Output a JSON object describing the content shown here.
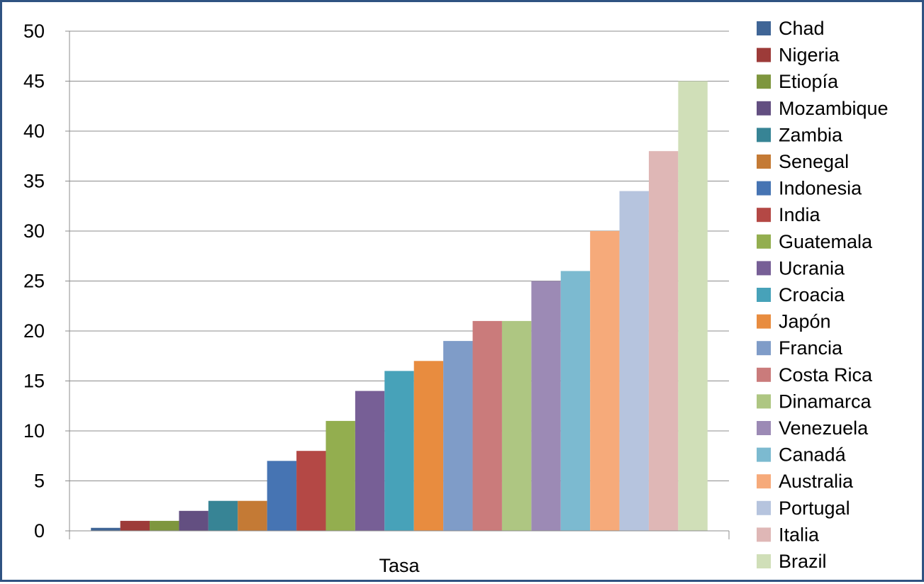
{
  "chart_data": {
    "type": "bar",
    "categories": [
      "Tasa"
    ],
    "title": "",
    "xlabel": "",
    "ylabel": "",
    "ylim": [
      0,
      50
    ],
    "yticks": [
      0,
      5,
      10,
      15,
      20,
      25,
      30,
      35,
      40,
      45,
      50
    ],
    "grid": true,
    "legend_position": "right",
    "series": [
      {
        "name": "Chad",
        "values": [
          0.3
        ],
        "color": "#3f6596"
      },
      {
        "name": "Nigeria",
        "values": [
          1
        ],
        "color": "#9d3b39"
      },
      {
        "name": "Etiopía",
        "values": [
          1
        ],
        "color": "#7e963e"
      },
      {
        "name": "Mozambique",
        "values": [
          2
        ],
        "color": "#634f81"
      },
      {
        "name": "Zambia",
        "values": [
          3
        ],
        "color": "#378495"
      },
      {
        "name": "Senegal",
        "values": [
          3
        ],
        "color": "#c47a35"
      },
      {
        "name": "Indonesia",
        "values": [
          7
        ],
        "color": "#4674b3"
      },
      {
        "name": "India",
        "values": [
          8
        ],
        "color": "#b44845"
      },
      {
        "name": "Guatemala",
        "values": [
          11
        ],
        "color": "#93ae4f"
      },
      {
        "name": "Ucrania",
        "values": [
          14
        ],
        "color": "#775f96"
      },
      {
        "name": "Croacia",
        "values": [
          16
        ],
        "color": "#47a2b9"
      },
      {
        "name": "Japón",
        "values": [
          17
        ],
        "color": "#e88c3f"
      },
      {
        "name": "Francia",
        "values": [
          19
        ],
        "color": "#7f9cc8"
      },
      {
        "name": "Costa Rica",
        "values": [
          21
        ],
        "color": "#ca7b7b"
      },
      {
        "name": "Dinamarca",
        "values": [
          21
        ],
        "color": "#aec682"
      },
      {
        "name": "Venezuela",
        "values": [
          25
        ],
        "color": "#9c8ab5"
      },
      {
        "name": "Canadá",
        "values": [
          26
        ],
        "color": "#7cbad0"
      },
      {
        "name": "Australia",
        "values": [
          30
        ],
        "color": "#f6aa7a"
      },
      {
        "name": "Portugal",
        "values": [
          34
        ],
        "color": "#b6c4de"
      },
      {
        "name": "Italia",
        "values": [
          38
        ],
        "color": "#dfb7b6"
      },
      {
        "name": "Brazil",
        "values": [
          45
        ],
        "color": "#d0dfb8"
      }
    ]
  },
  "colors": {
    "frame_border": "#2f5382",
    "gridline": "#8c8c8c",
    "axis": "#8c8c8c"
  }
}
